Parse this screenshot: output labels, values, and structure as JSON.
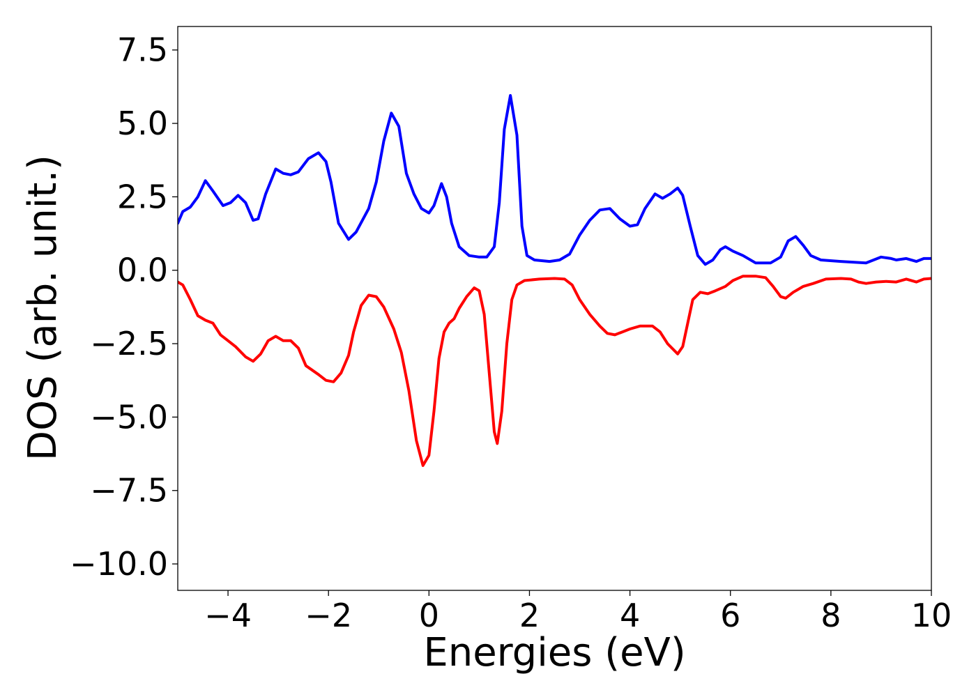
{
  "chart_data": {
    "type": "line",
    "title": "",
    "xlabel": "Energies (eV)",
    "ylabel": "DOS (arb. unit.)",
    "xlim": [
      -5,
      10
    ],
    "ylim": [
      -10.9,
      8.3
    ],
    "grid": false,
    "legend": "none",
    "x_ticks": [
      {
        "value": -4,
        "label": "−4"
      },
      {
        "value": -2,
        "label": "−2"
      },
      {
        "value": 0,
        "label": "0"
      },
      {
        "value": 2,
        "label": "2"
      },
      {
        "value": 4,
        "label": "4"
      },
      {
        "value": 6,
        "label": "6"
      },
      {
        "value": 8,
        "label": "8"
      },
      {
        "value": 10,
        "label": "10"
      }
    ],
    "y_ticks": [
      {
        "value": 7.5,
        "label": "7.5"
      },
      {
        "value": 5.0,
        "label": "5.0"
      },
      {
        "value": 2.5,
        "label": "2.5"
      },
      {
        "value": 0.0,
        "label": "0.0"
      },
      {
        "value": -2.5,
        "label": "−2.5"
      },
      {
        "value": -5.0,
        "label": "−5.0"
      },
      {
        "value": -7.5,
        "label": "−7.5"
      },
      {
        "value": -10.0,
        "label": "−10.0"
      }
    ],
    "series": [
      {
        "color": "#0000ff",
        "points": [
          [
            -5.0,
            1.6
          ],
          [
            -4.9,
            2.0
          ],
          [
            -4.75,
            2.15
          ],
          [
            -4.6,
            2.5
          ],
          [
            -4.45,
            3.05
          ],
          [
            -4.3,
            2.7
          ],
          [
            -4.1,
            2.2
          ],
          [
            -3.95,
            2.3
          ],
          [
            -3.8,
            2.55
          ],
          [
            -3.65,
            2.3
          ],
          [
            -3.5,
            1.7
          ],
          [
            -3.4,
            1.75
          ],
          [
            -3.25,
            2.6
          ],
          [
            -3.05,
            3.45
          ],
          [
            -2.9,
            3.3
          ],
          [
            -2.75,
            3.25
          ],
          [
            -2.6,
            3.35
          ],
          [
            -2.4,
            3.8
          ],
          [
            -2.2,
            4.0
          ],
          [
            -2.05,
            3.7
          ],
          [
            -1.95,
            3.0
          ],
          [
            -1.8,
            1.6
          ],
          [
            -1.6,
            1.05
          ],
          [
            -1.45,
            1.3
          ],
          [
            -1.2,
            2.1
          ],
          [
            -1.05,
            3.0
          ],
          [
            -0.9,
            4.4
          ],
          [
            -0.75,
            5.35
          ],
          [
            -0.6,
            4.9
          ],
          [
            -0.45,
            3.3
          ],
          [
            -0.3,
            2.6
          ],
          [
            -0.15,
            2.1
          ],
          [
            0.0,
            1.95
          ],
          [
            0.1,
            2.2
          ],
          [
            0.25,
            2.95
          ],
          [
            0.35,
            2.5
          ],
          [
            0.45,
            1.6
          ],
          [
            0.6,
            0.8
          ],
          [
            0.8,
            0.5
          ],
          [
            1.0,
            0.45
          ],
          [
            1.15,
            0.45
          ],
          [
            1.3,
            0.8
          ],
          [
            1.4,
            2.3
          ],
          [
            1.5,
            4.8
          ],
          [
            1.62,
            5.95
          ],
          [
            1.75,
            4.6
          ],
          [
            1.85,
            1.5
          ],
          [
            1.95,
            0.5
          ],
          [
            2.1,
            0.35
          ],
          [
            2.4,
            0.3
          ],
          [
            2.6,
            0.35
          ],
          [
            2.8,
            0.55
          ],
          [
            3.0,
            1.2
          ],
          [
            3.2,
            1.7
          ],
          [
            3.4,
            2.05
          ],
          [
            3.6,
            2.1
          ],
          [
            3.8,
            1.75
          ],
          [
            4.0,
            1.5
          ],
          [
            4.15,
            1.55
          ],
          [
            4.3,
            2.1
          ],
          [
            4.5,
            2.6
          ],
          [
            4.65,
            2.45
          ],
          [
            4.8,
            2.6
          ],
          [
            4.95,
            2.8
          ],
          [
            5.05,
            2.55
          ],
          [
            5.2,
            1.5
          ],
          [
            5.35,
            0.5
          ],
          [
            5.5,
            0.2
          ],
          [
            5.65,
            0.35
          ],
          [
            5.8,
            0.7
          ],
          [
            5.9,
            0.8
          ],
          [
            6.05,
            0.65
          ],
          [
            6.25,
            0.5
          ],
          [
            6.5,
            0.25
          ],
          [
            6.8,
            0.25
          ],
          [
            7.0,
            0.45
          ],
          [
            7.15,
            1.0
          ],
          [
            7.3,
            1.15
          ],
          [
            7.45,
            0.85
          ],
          [
            7.6,
            0.5
          ],
          [
            7.8,
            0.35
          ],
          [
            8.2,
            0.3
          ],
          [
            8.7,
            0.25
          ],
          [
            8.85,
            0.35
          ],
          [
            9.0,
            0.45
          ],
          [
            9.2,
            0.4
          ],
          [
            9.3,
            0.35
          ],
          [
            9.5,
            0.4
          ],
          [
            9.7,
            0.3
          ],
          [
            9.85,
            0.4
          ],
          [
            10.0,
            0.4
          ]
        ]
      },
      {
        "color": "#ff0000",
        "points": [
          [
            -5.0,
            -0.4
          ],
          [
            -4.9,
            -0.5
          ],
          [
            -4.75,
            -1.0
          ],
          [
            -4.6,
            -1.55
          ],
          [
            -4.45,
            -1.7
          ],
          [
            -4.3,
            -1.8
          ],
          [
            -4.15,
            -2.2
          ],
          [
            -4.0,
            -2.4
          ],
          [
            -3.85,
            -2.6
          ],
          [
            -3.65,
            -2.95
          ],
          [
            -3.5,
            -3.1
          ],
          [
            -3.35,
            -2.85
          ],
          [
            -3.2,
            -2.4
          ],
          [
            -3.05,
            -2.25
          ],
          [
            -2.9,
            -2.4
          ],
          [
            -2.75,
            -2.4
          ],
          [
            -2.6,
            -2.65
          ],
          [
            -2.45,
            -3.25
          ],
          [
            -2.2,
            -3.55
          ],
          [
            -2.05,
            -3.75
          ],
          [
            -1.9,
            -3.8
          ],
          [
            -1.75,
            -3.5
          ],
          [
            -1.6,
            -2.9
          ],
          [
            -1.5,
            -2.1
          ],
          [
            -1.35,
            -1.2
          ],
          [
            -1.2,
            -0.85
          ],
          [
            -1.05,
            -0.9
          ],
          [
            -0.9,
            -1.25
          ],
          [
            -0.7,
            -2.0
          ],
          [
            -0.55,
            -2.8
          ],
          [
            -0.4,
            -4.1
          ],
          [
            -0.25,
            -5.8
          ],
          [
            -0.12,
            -6.65
          ],
          [
            0.0,
            -6.3
          ],
          [
            0.1,
            -4.8
          ],
          [
            0.2,
            -3.0
          ],
          [
            0.3,
            -2.1
          ],
          [
            0.4,
            -1.8
          ],
          [
            0.5,
            -1.65
          ],
          [
            0.6,
            -1.3
          ],
          [
            0.75,
            -0.9
          ],
          [
            0.9,
            -0.6
          ],
          [
            1.0,
            -0.7
          ],
          [
            1.1,
            -1.5
          ],
          [
            1.2,
            -3.5
          ],
          [
            1.3,
            -5.5
          ],
          [
            1.36,
            -5.9
          ],
          [
            1.45,
            -4.8
          ],
          [
            1.55,
            -2.5
          ],
          [
            1.65,
            -1.0
          ],
          [
            1.75,
            -0.5
          ],
          [
            1.9,
            -0.35
          ],
          [
            2.2,
            -0.3
          ],
          [
            2.5,
            -0.28
          ],
          [
            2.7,
            -0.3
          ],
          [
            2.85,
            -0.5
          ],
          [
            3.0,
            -1.0
          ],
          [
            3.2,
            -1.5
          ],
          [
            3.4,
            -1.9
          ],
          [
            3.55,
            -2.15
          ],
          [
            3.7,
            -2.2
          ],
          [
            3.85,
            -2.1
          ],
          [
            4.0,
            -2.0
          ],
          [
            4.2,
            -1.9
          ],
          [
            4.45,
            -1.9
          ],
          [
            4.6,
            -2.1
          ],
          [
            4.75,
            -2.5
          ],
          [
            4.95,
            -2.85
          ],
          [
            5.05,
            -2.6
          ],
          [
            5.15,
            -1.8
          ],
          [
            5.25,
            -1.0
          ],
          [
            5.4,
            -0.75
          ],
          [
            5.55,
            -0.8
          ],
          [
            5.7,
            -0.7
          ],
          [
            5.9,
            -0.55
          ],
          [
            6.05,
            -0.35
          ],
          [
            6.25,
            -0.2
          ],
          [
            6.5,
            -0.2
          ],
          [
            6.7,
            -0.25
          ],
          [
            6.85,
            -0.55
          ],
          [
            7.0,
            -0.9
          ],
          [
            7.1,
            -0.95
          ],
          [
            7.25,
            -0.75
          ],
          [
            7.45,
            -0.55
          ],
          [
            7.65,
            -0.45
          ],
          [
            7.9,
            -0.3
          ],
          [
            8.2,
            -0.28
          ],
          [
            8.4,
            -0.3
          ],
          [
            8.55,
            -0.4
          ],
          [
            8.7,
            -0.45
          ],
          [
            8.9,
            -0.4
          ],
          [
            9.1,
            -0.38
          ],
          [
            9.3,
            -0.4
          ],
          [
            9.5,
            -0.3
          ],
          [
            9.7,
            -0.4
          ],
          [
            9.85,
            -0.3
          ],
          [
            10.0,
            -0.28
          ]
        ]
      }
    ]
  }
}
